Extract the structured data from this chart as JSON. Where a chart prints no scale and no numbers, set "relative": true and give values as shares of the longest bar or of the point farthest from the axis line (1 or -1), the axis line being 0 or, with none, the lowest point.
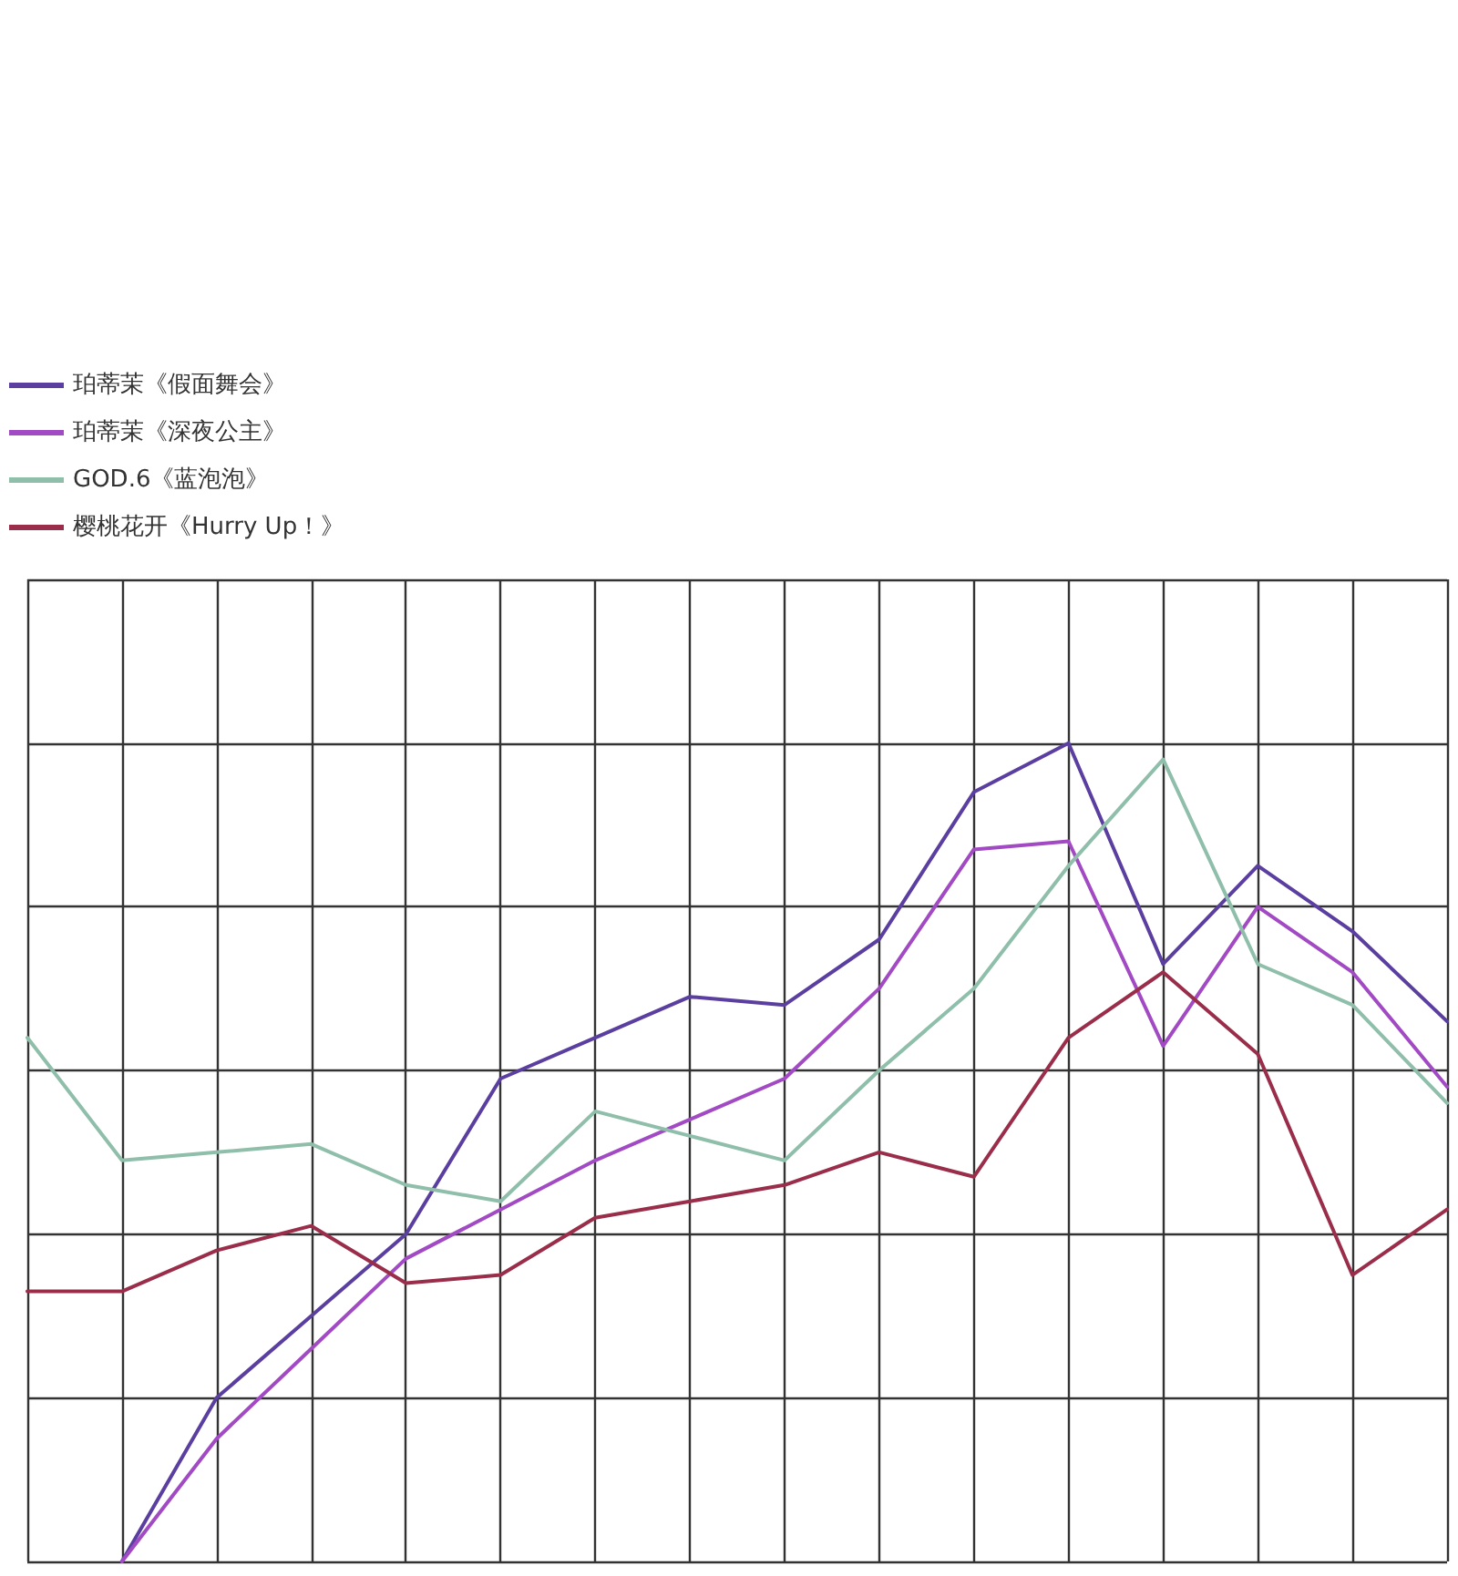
{
  "chart_data": {
    "type": "line",
    "relative": true,
    "grid": true,
    "legend": "top left",
    "marker": "none",
    "line_style": "solid",
    "categories": [
      null,
      null,
      null,
      null,
      null,
      null,
      null,
      null,
      null,
      null,
      null,
      null,
      null,
      null,
      null,
      null
    ],
    "series": [
      {
        "name": "珀蒂茉《假面舞会》",
        "color": "#5b3fa0",
        "values": [
          null,
          0,
          0.2,
          0.3,
          0.4,
          0.59,
          0.64,
          0.69,
          0.68,
          0.76,
          0.94,
          1,
          0.73,
          0.85,
          0.77,
          0.66
        ]
      },
      {
        "name": "珀蒂茉《深夜公主》",
        "color": "#a24ac4",
        "values": [
          null,
          0,
          0.15,
          0.26,
          0.37,
          0.43,
          0.49,
          0.54,
          0.59,
          0.7,
          0.87,
          0.88,
          0.63,
          0.8,
          0.72,
          0.58
        ]
      },
      {
        "name": "GOD.6《蓝泡泡》",
        "color": "#8fbfaa",
        "values": [
          0.64,
          0.49,
          0.5,
          0.51,
          0.46,
          0.44,
          0.55,
          0.52,
          0.49,
          0.6,
          0.7,
          0.85,
          0.98,
          0.73,
          0.68,
          0.56
        ]
      },
      {
        "name": "樱桃花开《Hurry Up！》",
        "color": "#9a2e4a",
        "values": [
          0.33,
          0.33,
          0.38,
          0.41,
          0.34,
          0.35,
          0.42,
          0.44,
          0.46,
          0.5,
          0.47,
          0.64,
          0.72,
          0.62,
          0.35,
          0.43
        ]
      }
    ]
  }
}
